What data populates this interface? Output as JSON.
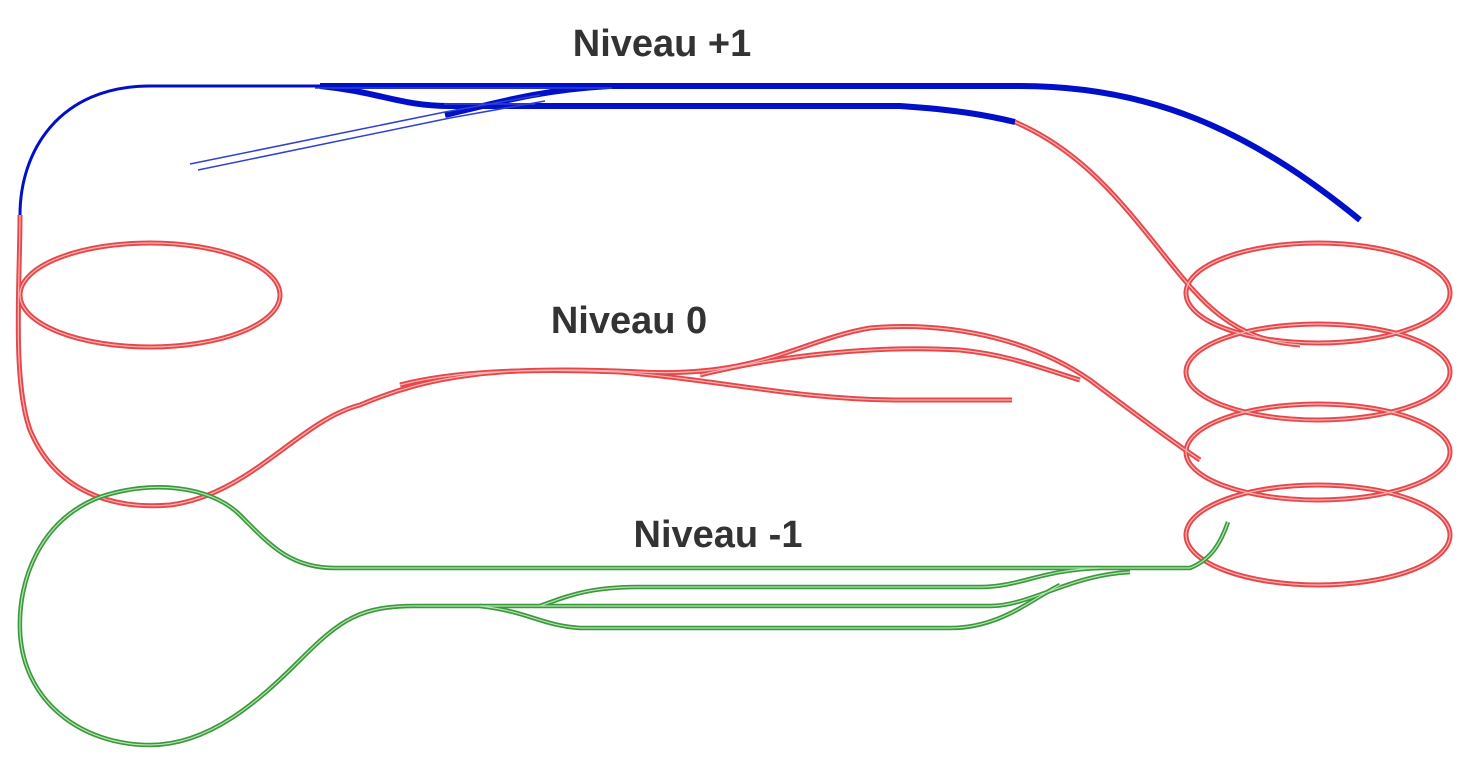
{
  "levels": [
    {
      "label": "Niveau +1"
    },
    {
      "label": "Niveau 0"
    },
    {
      "label": "Niveau -1"
    }
  ]
}
